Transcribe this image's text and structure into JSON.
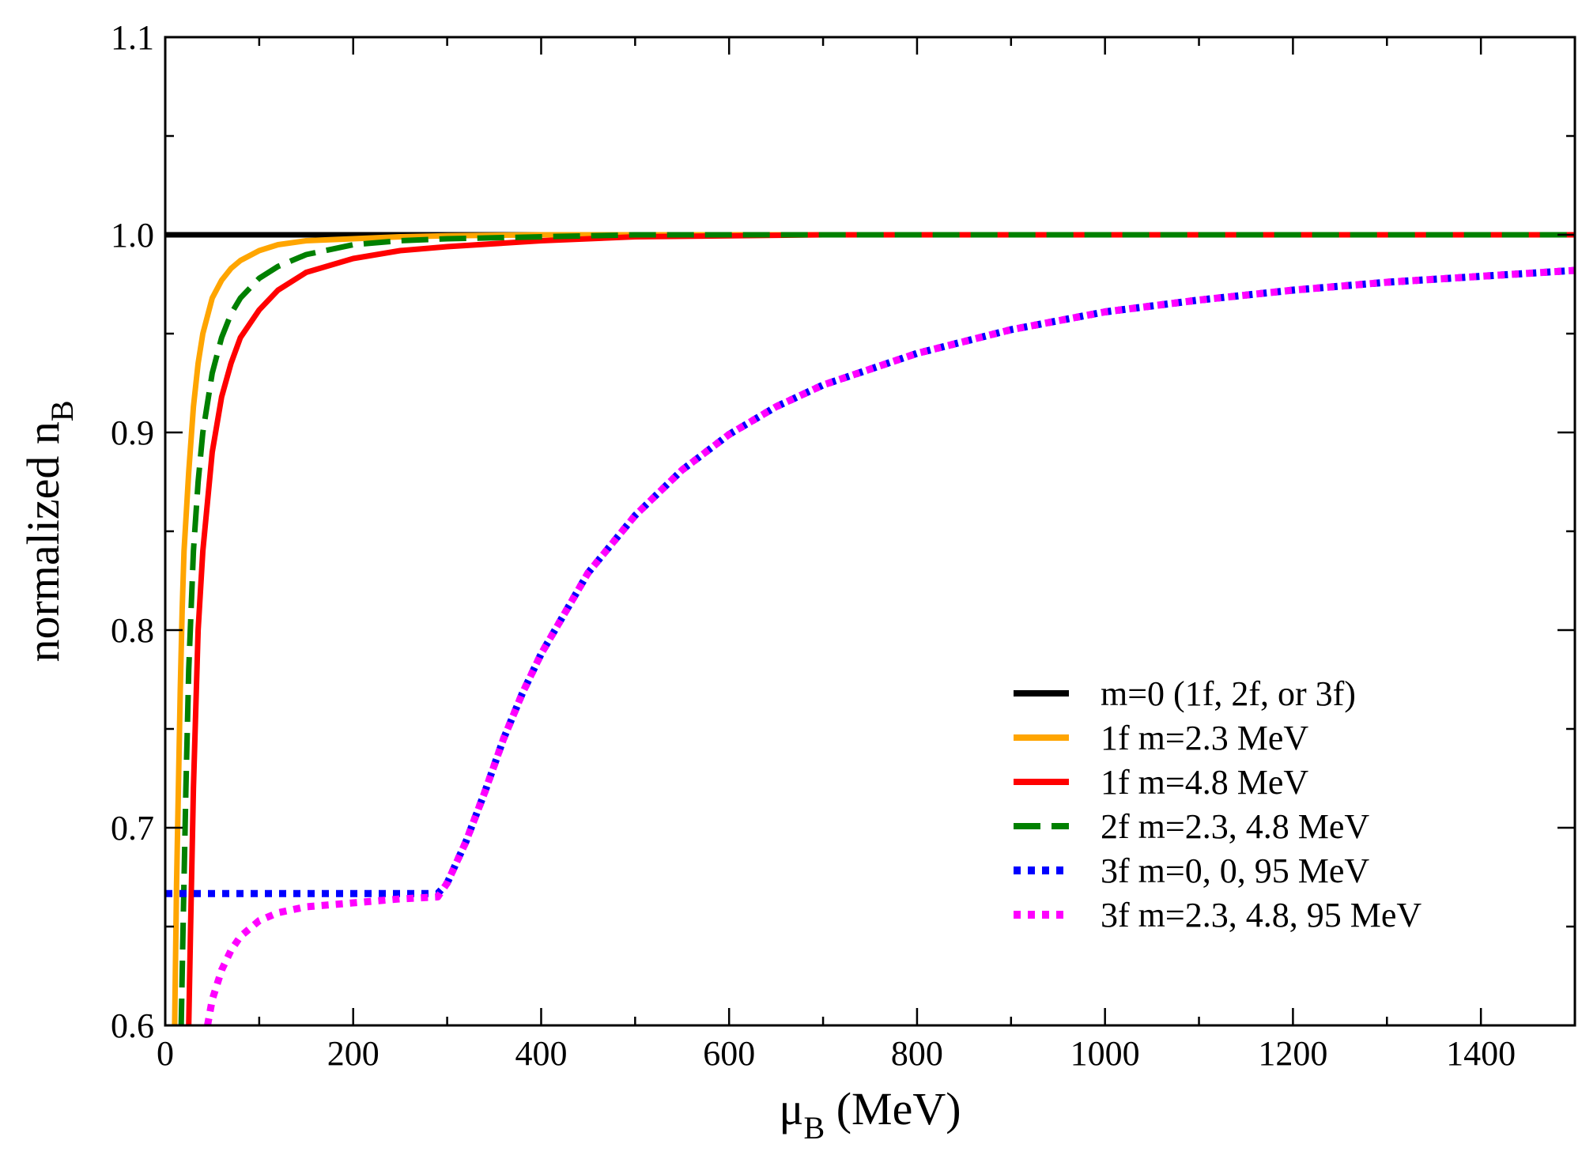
{
  "chart_data": {
    "type": "line",
    "title": "",
    "xlabel": {
      "main": "μ",
      "sub": "B",
      "rest": " (MeV)"
    },
    "ylabel": {
      "main": "normalized n",
      "sub": "B"
    },
    "xlim": [
      0,
      1500
    ],
    "ylim": [
      0.6,
      1.1
    ],
    "x_ticks": [
      0,
      200,
      400,
      600,
      800,
      1000,
      1200,
      1400
    ],
    "x_tick_labels": [
      "0",
      "200",
      "400",
      "600",
      "800",
      "1000",
      "1200",
      "1400"
    ],
    "y_ticks": [
      0.6,
      0.7,
      0.8,
      0.9,
      1.0,
      1.1
    ],
    "y_tick_labels": [
      "0.6",
      "0.7",
      "0.8",
      "0.9",
      "1.0",
      "1.1"
    ],
    "grid": false,
    "legend_position": "bottom-right",
    "series": [
      {
        "name": "m=0 (1f, 2f, or 3f)",
        "color": "#000000",
        "style": "solid",
        "x": [
          0,
          1500
        ],
        "y": [
          1.0,
          1.0
        ]
      },
      {
        "name": "1f m=2.3 MeV",
        "color": "#FFA500",
        "style": "solid",
        "x": [
          10,
          12,
          14,
          16,
          18,
          20,
          25,
          30,
          35,
          40,
          50,
          60,
          70,
          80,
          100,
          120,
          150,
          200,
          250,
          300,
          400,
          600,
          1000,
          1500
        ],
        "y": [
          0.6,
          0.67,
          0.72,
          0.77,
          0.81,
          0.84,
          0.88,
          0.913,
          0.935,
          0.95,
          0.968,
          0.977,
          0.983,
          0.987,
          0.992,
          0.995,
          0.997,
          0.998,
          0.999,
          0.9995,
          1.0,
          1.0,
          1.0,
          1.0
        ]
      },
      {
        "name": "1f m=4.8 MeV",
        "color": "#FF0000",
        "style": "solid",
        "x": [
          25,
          27,
          30,
          35,
          40,
          50,
          60,
          70,
          80,
          100,
          120,
          150,
          200,
          250,
          300,
          400,
          500,
          700,
          1000,
          1500
        ],
        "y": [
          0.6,
          0.65,
          0.72,
          0.8,
          0.84,
          0.89,
          0.918,
          0.935,
          0.948,
          0.962,
          0.972,
          0.981,
          0.988,
          0.992,
          0.994,
          0.997,
          0.999,
          1.0,
          1.0,
          1.0
        ]
      },
      {
        "name": "2f m=2.3, 4.8 MeV",
        "color": "#008000",
        "style": "dashed",
        "x": [
          17,
          19,
          22,
          25,
          30,
          35,
          40,
          50,
          60,
          70,
          80,
          100,
          120,
          150,
          200,
          250,
          300,
          400,
          500,
          1000,
          1500
        ],
        "y": [
          0.6,
          0.65,
          0.72,
          0.78,
          0.84,
          0.875,
          0.9,
          0.93,
          0.948,
          0.96,
          0.968,
          0.978,
          0.984,
          0.99,
          0.995,
          0.997,
          0.998,
          0.999,
          1.0,
          1.0,
          1.0
        ]
      },
      {
        "name": "3f m=0, 0, 95 MeV",
        "color": "#0000FF",
        "style": "dotted",
        "x": [
          0,
          95,
          200,
          290,
          300,
          320,
          340,
          360,
          380,
          400,
          450,
          500,
          550,
          600,
          650,
          700,
          800,
          900,
          1000,
          1100,
          1200,
          1300,
          1400,
          1500
        ],
        "y": [
          0.6667,
          0.6667,
          0.6667,
          0.6667,
          0.672,
          0.693,
          0.718,
          0.745,
          0.768,
          0.788,
          0.829,
          0.858,
          0.881,
          0.899,
          0.913,
          0.924,
          0.94,
          0.952,
          0.961,
          0.967,
          0.972,
          0.976,
          0.979,
          0.982
        ]
      },
      {
        "name": "3f m=2.3, 4.8, 95 MeV",
        "color": "#FF00FF",
        "style": "dotted",
        "x": [
          45,
          50,
          60,
          70,
          80,
          100,
          120,
          150,
          200,
          250,
          290,
          300,
          320,
          340,
          360,
          380,
          400,
          450,
          500,
          550,
          600,
          650,
          700,
          800,
          900,
          1000,
          1100,
          1200,
          1300,
          1400,
          1500
        ],
        "y": [
          0.6,
          0.613,
          0.628,
          0.638,
          0.645,
          0.653,
          0.657,
          0.66,
          0.662,
          0.664,
          0.665,
          0.672,
          0.693,
          0.718,
          0.745,
          0.768,
          0.788,
          0.829,
          0.858,
          0.881,
          0.899,
          0.913,
          0.924,
          0.94,
          0.952,
          0.961,
          0.967,
          0.972,
          0.976,
          0.979,
          0.982
        ]
      }
    ]
  }
}
